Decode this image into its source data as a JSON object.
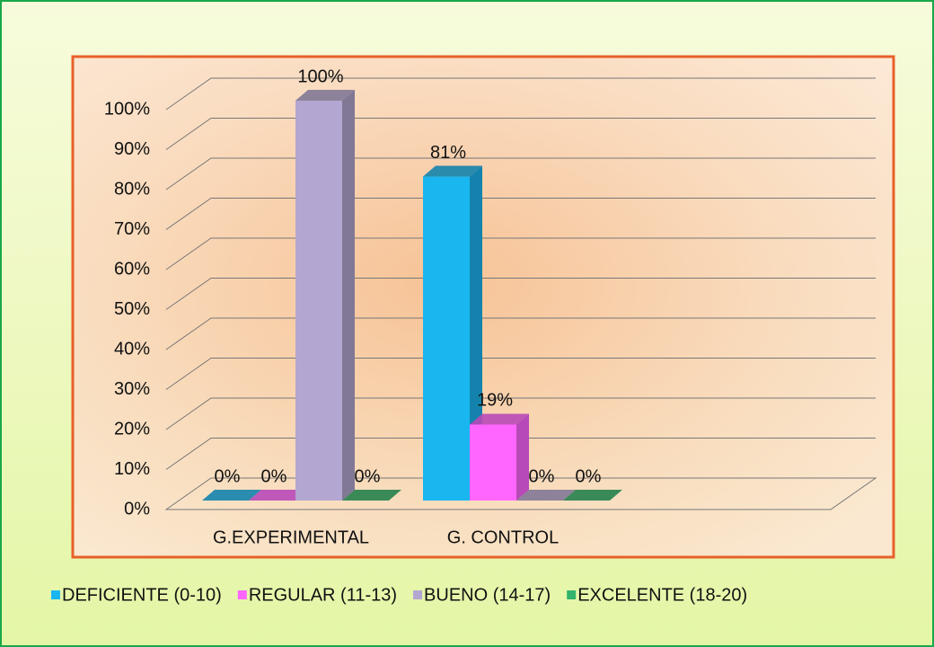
{
  "chart_data": {
    "type": "bar",
    "categories": [
      "G.EXPERIMENTAL",
      "G. CONTROL"
    ],
    "series": [
      {
        "name": "DEFICIENTE (0-10)",
        "color": "#1ab6f0",
        "values": [
          0,
          81
        ],
        "value_labels": [
          "0%",
          "81%"
        ]
      },
      {
        "name": "REGULAR (11-13)",
        "color": "#ff66ff",
        "values": [
          0,
          19
        ],
        "value_labels": [
          "0%",
          "19%"
        ]
      },
      {
        "name": "BUENO (14-17)",
        "color": "#b3a6d0",
        "values": [
          100,
          0
        ],
        "value_labels": [
          "100%",
          "0%"
        ]
      },
      {
        "name": "EXCELENTE (18-20)",
        "color": "#33b36b",
        "values": [
          0,
          0
        ],
        "value_labels": [
          "0%",
          "0%"
        ]
      }
    ],
    "ylim": [
      0,
      100
    ],
    "yticks": [
      {
        "value": 0,
        "label": "0%"
      },
      {
        "value": 10,
        "label": "10%"
      },
      {
        "value": 20,
        "label": "20%"
      },
      {
        "value": 30,
        "label": "30%"
      },
      {
        "value": 40,
        "label": "40%"
      },
      {
        "value": 50,
        "label": "50%"
      },
      {
        "value": 60,
        "label": "60%"
      },
      {
        "value": 70,
        "label": "70%"
      },
      {
        "value": 80,
        "label": "80%"
      },
      {
        "value": 90,
        "label": "90%"
      },
      {
        "value": 100,
        "label": "100%"
      }
    ],
    "grid": true,
    "legend": "bottom"
  }
}
